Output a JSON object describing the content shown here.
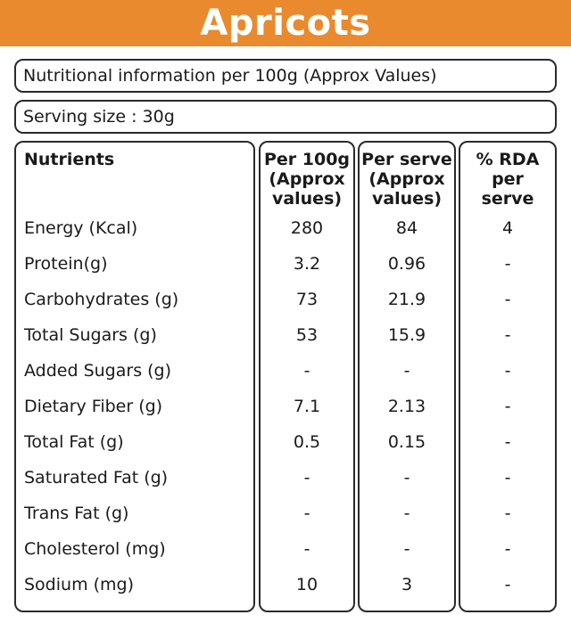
{
  "title": "Apricots",
  "info_text": "Nutritional information per 100g (Approx Values)",
  "serving_text": "Serving size : 30g",
  "headers": {
    "nutrients": "Nutrients",
    "per100_l1": "Per 100g",
    "per100_l2": "(Approx",
    "per100_l3": "values)",
    "perserve_l1": "Per serve",
    "perserve_l2": "(Approx",
    "perserve_l3": "values)",
    "rda_l1": "% RDA",
    "rda_l2": "per",
    "rda_l3": "serve"
  },
  "rows": [
    {
      "name": "Energy (Kcal)",
      "per100": "280",
      "perserve": "84",
      "rda": "4"
    },
    {
      "name": "Protein(g)",
      "per100": "3.2",
      "perserve": "0.96",
      "rda": "-"
    },
    {
      "name": "Carbohydrates (g)",
      "per100": "73",
      "perserve": "21.9",
      "rda": "-"
    },
    {
      "name": "Total Sugars (g)",
      "per100": "53",
      "perserve": "15.9",
      "rda": "-"
    },
    {
      "name": "Added Sugars (g)",
      "per100": "-",
      "perserve": "-",
      "rda": "-"
    },
    {
      "name": "Dietary Fiber (g)",
      "per100": "7.1",
      "perserve": "2.13",
      "rda": "-"
    },
    {
      "name": "Total Fat (g)",
      "per100": "0.5",
      "perserve": "0.15",
      "rda": "-"
    },
    {
      "name": "Saturated Fat (g)",
      "per100": "-",
      "perserve": "-",
      "rda": "-"
    },
    {
      "name": "Trans Fat (g)",
      "per100": "-",
      "perserve": "-",
      "rda": "-"
    },
    {
      "name": "Cholesterol (mg)",
      "per100": "-",
      "perserve": "-",
      "rda": "-"
    },
    {
      "name": "Sodium (mg)",
      "per100": "10",
      "perserve": "3",
      "rda": "-"
    }
  ],
  "colors": {
    "banner": "#e98a2e",
    "border": "#2a2a2a"
  }
}
